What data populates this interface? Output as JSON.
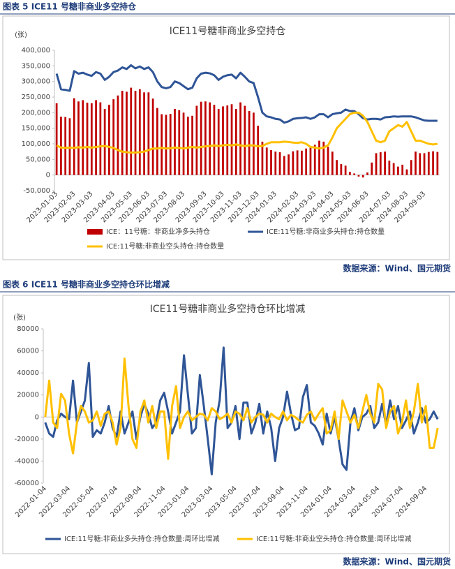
{
  "captions": [
    "图表 5 ICE11 号糖非商业多空持仓",
    "图表 6 ICE11 号糖非商业多空持仓环比增减"
  ],
  "sources": [
    "数据来源：Wind、国元期货",
    "数据来源：Wind、国元期货"
  ],
  "chart_data": [
    {
      "type": "combo",
      "title": "ICE11号糖非商业多空持仓",
      "y_label": "(张)",
      "ylim": [
        -50000,
        400000
      ],
      "yticks": [
        {
          "value": -50000,
          "label": "-50,000"
        },
        0,
        {
          "value": 50000,
          "label": "50,000"
        },
        {
          "value": 100000,
          "label": "100,000"
        },
        {
          "value": 150000,
          "label": "150,000"
        },
        {
          "value": 200000,
          "label": "200,000"
        },
        {
          "value": 250000,
          "label": "250,000"
        },
        {
          "value": 300000,
          "label": "300,000"
        },
        {
          "value": 350000,
          "label": "350,000"
        },
        {
          "value": 400000,
          "label": "400,000"
        }
      ],
      "grid": false,
      "categories": [
        "2023-01-03",
        null,
        null,
        null,
        "2023-02-03",
        null,
        null,
        null,
        "2023-03-03",
        null,
        null,
        null,
        null,
        "2023-04-03",
        null,
        null,
        null,
        "2023-05-03",
        null,
        null,
        null,
        "2023-06-03",
        null,
        null,
        null,
        "2023-07-03",
        null,
        null,
        null,
        "2023-08-03",
        null,
        null,
        null,
        null,
        "2023-09-03",
        null,
        null,
        null,
        "2023-10-03",
        null,
        null,
        null,
        "2023-11-03",
        null,
        null,
        null,
        "2023-12-03",
        null,
        null,
        null,
        "2024-01-03",
        null,
        null,
        null,
        null,
        "2024-02-03",
        null,
        null,
        null,
        "2024-03-03",
        null,
        null,
        null,
        "2024-04-03",
        null,
        null,
        null,
        "2024-05-03",
        null,
        null,
        null,
        "2024-06-03",
        null,
        null,
        null,
        null,
        "2024-07-03",
        null,
        null,
        null,
        "2024-08-03",
        null,
        null,
        null,
        "2024-09-03",
        null,
        null,
        null
      ],
      "series": [
        {
          "name": "ICE：11号糖：非商业净多头持仓",
          "type": "bar",
          "color": "#c00000",
          "values": [
            230000,
            187000,
            186000,
            182000,
            246000,
            236000,
            240000,
            232000,
            230000,
            240000,
            233000,
            212000,
            225000,
            243000,
            255000,
            270000,
            267000,
            280000,
            270000,
            275000,
            265000,
            265000,
            245000,
            215000,
            195000,
            193000,
            196000,
            212000,
            208000,
            200000,
            187000,
            190000,
            222000,
            235000,
            236000,
            233000,
            225000,
            212000,
            220000,
            223000,
            227000,
            212000,
            233000,
            222000,
            205000,
            200000,
            158000,
            107000,
            88000,
            80000,
            75000,
            73000,
            61000,
            66000,
            76000,
            79000,
            78000,
            85000,
            90000,
            97000,
            110000,
            107000,
            90000,
            75000,
            48000,
            35000,
            30000,
            10000,
            5000,
            -5000,
            -8000,
            8000,
            40000,
            70000,
            73000,
            75000,
            46000,
            38000,
            27000,
            33000,
            18000,
            48000,
            75000,
            70000,
            70000,
            74000,
            76000,
            74000
          ]
        },
        {
          "name": "ICE:11号糖:非商业多头持仓:持仓数量",
          "type": "line",
          "color": "#2f5597",
          "values": [
            325000,
            275000,
            273000,
            270000,
            333000,
            325000,
            328000,
            322000,
            318000,
            330000,
            325000,
            305000,
            315000,
            330000,
            335000,
            345000,
            340000,
            352000,
            342000,
            348000,
            340000,
            345000,
            330000,
            300000,
            282000,
            278000,
            282000,
            300000,
            295000,
            285000,
            275000,
            280000,
            310000,
            325000,
            328000,
            326000,
            320000,
            305000,
            315000,
            320000,
            322000,
            310000,
            328000,
            315000,
            300000,
            295000,
            250000,
            200000,
            188000,
            185000,
            180000,
            178000,
            168000,
            172000,
            180000,
            182000,
            183000,
            185000,
            180000,
            185000,
            195000,
            195000,
            185000,
            195000,
            198000,
            200000,
            210000,
            205000,
            205000,
            195000,
            182000,
            178000,
            180000,
            180000,
            178000,
            185000,
            186000,
            188000,
            187000,
            188000,
            188000,
            188000,
            185000,
            180000,
            175000,
            174000,
            174000,
            174000
          ]
        },
        {
          "name": "ICE:11号糖:非商业空头持仓:持仓数量",
          "type": "line",
          "color": "#ffc000",
          "values": [
            95000,
            88000,
            87000,
            88000,
            87000,
            89000,
            88000,
            90000,
            88000,
            90000,
            92000,
            93000,
            90000,
            87000,
            80000,
            75000,
            73000,
            72000,
            72000,
            73000,
            75000,
            80000,
            85000,
            85000,
            87000,
            85000,
            86000,
            88000,
            87000,
            85000,
            88000,
            90000,
            88000,
            90000,
            92000,
            93000,
            95000,
            93000,
            95000,
            97000,
            95000,
            98000,
            95000,
            93000,
            95000,
            95000,
            92000,
            93000,
            100000,
            105000,
            105000,
            105000,
            107000,
            106000,
            104000,
            103000,
            105000,
            100000,
            90000,
            88000,
            85000,
            88000,
            95000,
            120000,
            150000,
            165000,
            180000,
            195000,
            200000,
            200000,
            190000,
            170000,
            140000,
            110000,
            105000,
            110000,
            140000,
            150000,
            160000,
            155000,
            170000,
            140000,
            110000,
            110000,
            105000,
            100000,
            98000,
            100000
          ]
        }
      ]
    },
    {
      "type": "line",
      "title": "ICE11号糖非商业多空持仓环比增减",
      "y_label": "(张)",
      "ylim": [
        -60000,
        80000
      ],
      "yticks": [
        -60000,
        -40000,
        -20000,
        0,
        20000,
        40000,
        60000,
        80000
      ],
      "grid": false,
      "categories": [
        "2022-01-04",
        null,
        null,
        null,
        null,
        null,
        "2022-03-04",
        null,
        null,
        null,
        null,
        null,
        "2022-05-04",
        null,
        null,
        null,
        null,
        null,
        "2022-07-04",
        null,
        null,
        null,
        null,
        null,
        "2022-09-04",
        null,
        null,
        null,
        null,
        null,
        "2022-11-04",
        null,
        null,
        null,
        null,
        null,
        "2023-01-04",
        null,
        null,
        null,
        null,
        null,
        "2023-03-04",
        null,
        null,
        null,
        null,
        null,
        "2023-05-04",
        null,
        null,
        null,
        null,
        null,
        "2023-07-04",
        null,
        null,
        null,
        null,
        null,
        "2023-09-04",
        null,
        null,
        null,
        null,
        null,
        "2023-11-04",
        null,
        null,
        null,
        null,
        null,
        "2024-01-04",
        null,
        null,
        null,
        null,
        null,
        "2024-03-04",
        null,
        null,
        null,
        null,
        null,
        "2024-05-04",
        null,
        null,
        null,
        null,
        null,
        "2024-07-04",
        null,
        null,
        null,
        null,
        null,
        "2024-09-04",
        null,
        null,
        null
      ],
      "series": [
        {
          "name": "ICE:11号糖:非商业多头持仓:持仓数量:周环比增减",
          "type": "line",
          "color": "#2f5597",
          "values": [
            -5000,
            -15000,
            -18000,
            -3000,
            3000,
            0,
            -2000,
            33000,
            -5000,
            5000,
            15000,
            49000,
            -18000,
            -12000,
            -15000,
            -5000,
            10000,
            -10000,
            -18000,
            5000,
            -15000,
            -5000,
            5000,
            -20000,
            0,
            12000,
            3000,
            -10000,
            -5000,
            15000,
            22000,
            5000,
            -15000,
            -5000,
            5000,
            56000,
            20000,
            -15000,
            -10000,
            38000,
            10000,
            -20000,
            -52000,
            -5000,
            15000,
            63000,
            -10000,
            -5000,
            10000,
            -20000,
            13000,
            13000,
            -15000,
            -5000,
            12000,
            -15000,
            5000,
            -10000,
            -40000,
            -10000,
            0,
            23000,
            3000,
            -12000,
            -10000,
            18000,
            29000,
            -5000,
            -8000,
            -15000,
            -25000,
            3000,
            -15000,
            0,
            -20000,
            -43000,
            -48000,
            -5000,
            8000,
            -12000,
            0,
            3000,
            10000,
            -10000,
            -5000,
            12000,
            -8000,
            15000,
            -2000,
            10000,
            -10000,
            -3000,
            5000,
            -15000,
            -5000,
            8000,
            -5000,
            -2000,
            5000,
            -2000
          ]
        },
        {
          "name": "ICE:11号糖:非商业空头持仓:持仓数量:周环比增减",
          "type": "line",
          "color": "#ffc000",
          "values": [
            0,
            33000,
            -5000,
            -10000,
            21000,
            15000,
            -15000,
            -33000,
            -5000,
            10000,
            5000,
            -5000,
            -3000,
            5000,
            -8000,
            3000,
            5000,
            -5000,
            -25000,
            -10000,
            53000,
            10000,
            -20000,
            -28000,
            5000,
            15000,
            -5000,
            10000,
            -10000,
            5000,
            5000,
            -38000,
            10000,
            28000,
            -10000,
            0,
            5000,
            -3000,
            0,
            3000,
            2000,
            -3000,
            8000,
            5000,
            -2000,
            0,
            3000,
            -5000,
            5000,
            3000,
            -3000,
            8000,
            -5000,
            0,
            3000,
            2000,
            -5000,
            3000,
            0,
            -2000,
            5000,
            -3000,
            2000,
            0,
            -3000,
            -5000,
            2000,
            5000,
            -3000,
            3000,
            8000,
            -15000,
            -12000,
            5000,
            -20000,
            15000,
            5000,
            -5000,
            2000,
            -10000,
            5000,
            20000,
            3000,
            -5000,
            30000,
            25000,
            -10000,
            5000,
            10000,
            -15000,
            -5000,
            15000,
            -10000,
            5000,
            30000,
            -5000,
            10000,
            -28000,
            -28000,
            -10000
          ]
        }
      ]
    }
  ]
}
